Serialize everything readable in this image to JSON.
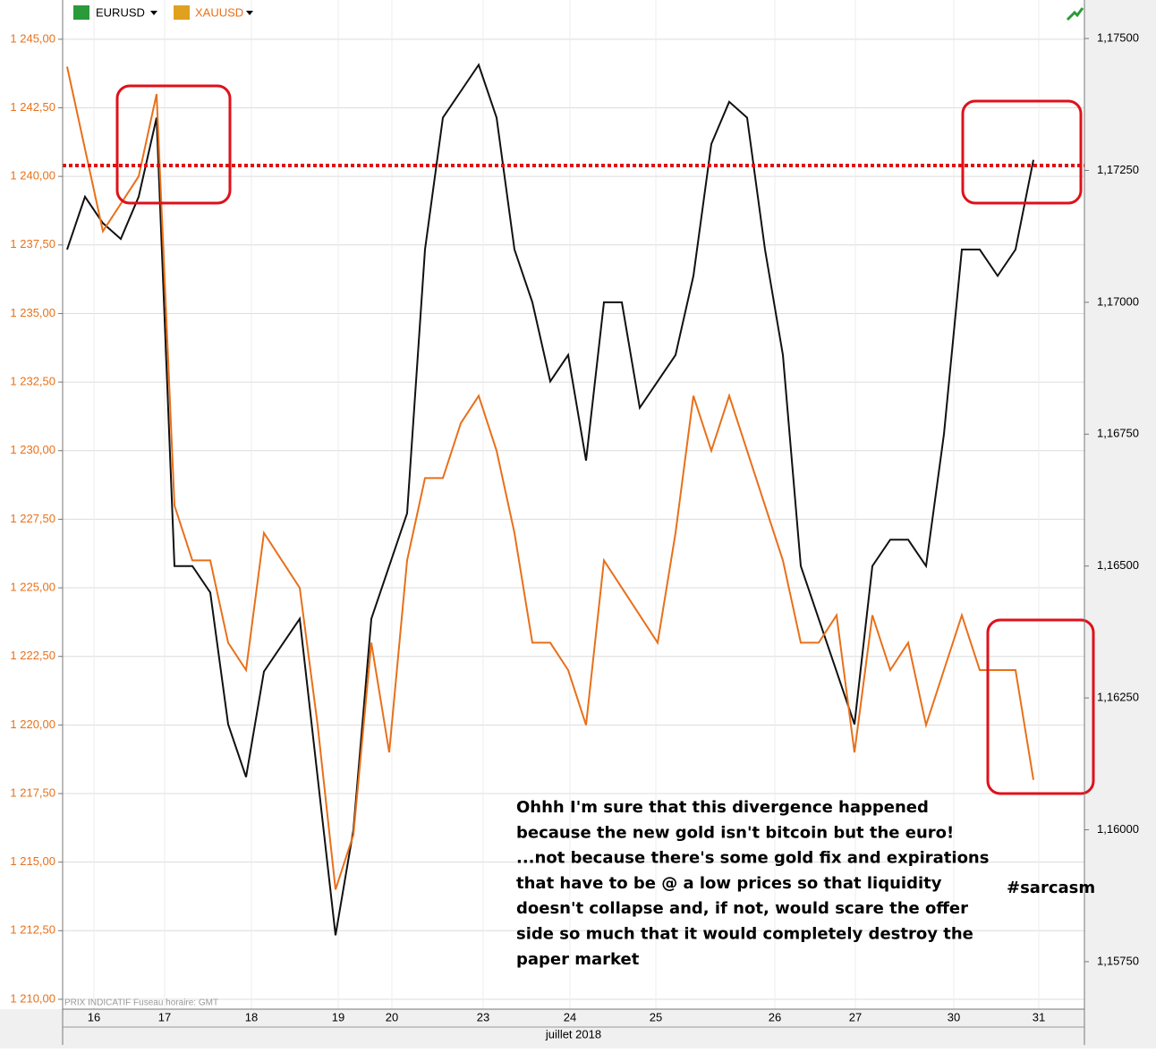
{
  "chart_data": {
    "type": "line",
    "legend": [
      "EURUSD",
      "XAUUSD"
    ],
    "footnote": "PRIX INDICATIF   Fuseau horaire: GMT",
    "x_axis_label": "juillet 2018",
    "annotation": [
      "Ohhh I'm sure that this divergence happened",
      "because the new gold isn't bitcoin but the euro!",
      "...not because there's some gold fix and expirations",
      "that have to be @ a low prices so that liquidity",
      "doesn't collapse and, if not, would scare the offer",
      "side so much that it would completely destroy the",
      "paper market"
    ],
    "hashtag": "#sarcasm",
    "x": [
      0,
      1,
      2,
      3,
      4,
      5,
      6,
      7,
      8,
      9,
      10,
      11,
      12,
      13,
      14,
      15,
      16,
      17,
      18,
      19,
      20,
      21,
      22,
      23,
      24,
      25,
      26,
      27,
      28,
      29,
      30,
      31,
      32,
      33,
      34,
      35,
      36,
      37,
      38,
      39,
      40,
      41,
      42,
      43,
      44,
      45,
      46,
      47,
      48,
      49,
      50,
      51,
      52,
      53,
      54
    ],
    "xlim": [
      -0.25,
      56.85
    ],
    "xticks": [
      {
        "value": 1.5,
        "label": "16"
      },
      {
        "value": 5.45,
        "label": "17"
      },
      {
        "value": 10.3,
        "label": "18"
      },
      {
        "value": 15.15,
        "label": "19"
      },
      {
        "value": 18.15,
        "label": "20"
      },
      {
        "value": 23.25,
        "label": "23"
      },
      {
        "value": 28.1,
        "label": "24"
      },
      {
        "value": 32.9,
        "label": "25"
      },
      {
        "value": 39.55,
        "label": "26"
      },
      {
        "value": 44.05,
        "label": "27"
      },
      {
        "value": 49.55,
        "label": "30"
      },
      {
        "value": 54.3,
        "label": "31"
      }
    ],
    "ylim": [
      1209.64,
      1246.43
    ],
    "yticks": [
      {
        "value": 1210,
        "label": "1 210,00"
      },
      {
        "value": 1212.5,
        "label": "1 212,50"
      },
      {
        "value": 1215,
        "label": "1 215,00"
      },
      {
        "value": 1217.5,
        "label": "1 217,50"
      },
      {
        "value": 1220,
        "label": "1 220,00"
      },
      {
        "value": 1222.5,
        "label": "1 222,50"
      },
      {
        "value": 1225,
        "label": "1 225,00"
      },
      {
        "value": 1227.5,
        "label": "1 227,50"
      },
      {
        "value": 1230,
        "label": "1 230,00"
      },
      {
        "value": 1232.5,
        "label": "1 232,50"
      },
      {
        "value": 1235,
        "label": "1 235,00"
      },
      {
        "value": 1237.5,
        "label": "1 237,50"
      },
      {
        "value": 1240,
        "label": "1 240,00"
      },
      {
        "value": 1242.5,
        "label": "1 242,50"
      },
      {
        "value": 1245,
        "label": "1 245,00"
      }
    ],
    "y2lim": [
      1.1566,
      1.17573
    ],
    "y2ticks": [
      {
        "value": 1.1575,
        "label": "1,15750"
      },
      {
        "value": 1.16,
        "label": "1,16000"
      },
      {
        "value": 1.1625,
        "label": "1,16250"
      },
      {
        "value": 1.165,
        "label": "1,16500"
      },
      {
        "value": 1.1675,
        "label": "1,16750"
      },
      {
        "value": 1.17,
        "label": "1,17000"
      },
      {
        "value": 1.1725,
        "label": "1,17250"
      },
      {
        "value": 1.175,
        "label": "1,17500"
      }
    ],
    "grid": true,
    "series": [
      {
        "name": "EURUSD",
        "color": "#111111",
        "axis": "y2",
        "values": [
          1.171,
          1.172,
          1.1715,
          1.1712,
          1.172,
          1.1735,
          1.165,
          1.165,
          1.1645,
          1.162,
          1.161,
          1.163,
          1.1635,
          1.164,
          1.161,
          1.158,
          1.16,
          1.164,
          1.165,
          1.166,
          1.171,
          1.1735,
          1.174,
          1.1745,
          1.1735,
          1.171,
          1.17,
          1.1685,
          1.169,
          1.167,
          1.17,
          1.17,
          1.168,
          1.1685,
          1.169,
          1.1705,
          1.173,
          1.1738,
          1.1735,
          1.171,
          1.169,
          1.165,
          1.164,
          1.163,
          1.162,
          1.165,
          1.1655,
          1.1655,
          1.165,
          1.1675,
          1.171,
          1.171,
          1.1705,
          1.171,
          1.1727
        ]
      },
      {
        "name": "XAUUSD",
        "color": "#e8701a",
        "values": [
          1244,
          1241,
          1238,
          1239,
          1240,
          1243,
          1228,
          1226,
          1226,
          1223,
          1222,
          1227,
          1226,
          1225,
          1220,
          1214,
          1216,
          1223,
          1219,
          1226,
          1229,
          1229,
          1231,
          1232,
          1230,
          1227,
          1223,
          1223,
          1222,
          1220,
          1226,
          1225,
          1224,
          1223,
          1227,
          1232,
          1230,
          1232,
          1230,
          1228,
          1226,
          1223,
          1223,
          1224,
          1219,
          1224,
          1222,
          1223,
          1220,
          1222,
          1224,
          1222,
          1222,
          1222,
          1218
        ]
      }
    ]
  }
}
